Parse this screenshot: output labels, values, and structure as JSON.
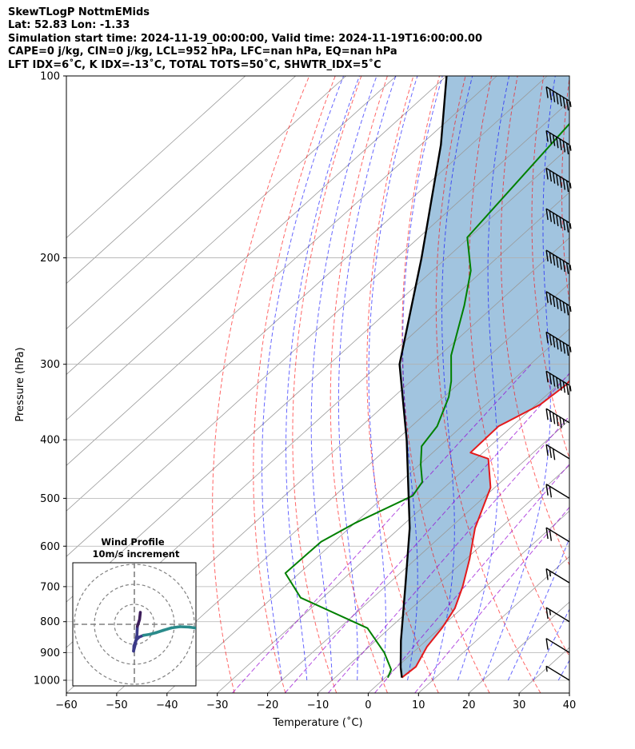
{
  "header": {
    "line1": "SkewTLogP NottmEMids",
    "line2": "Lat: 52.83   Lon: -1.33",
    "line3": "Simulation start time: 2024-11-19_00:00:00, Valid time: 2024-11-19T16:00:00.00",
    "line4": "CAPE=0 j/kg, CIN=0 j/kg, LCL=952 hPa, LFC=nan hPa, EQ=nan hPa",
    "line5": "LFT IDX=6˚C, K IDX=-13˚C, TOTAL TOTS=50˚C, SHWTR_IDX=5˚C"
  },
  "colors": {
    "temperature": "#e41a1c",
    "dewpoint": "#008000",
    "parcel": "#000000",
    "fill": "#a1c4df",
    "dry_adiabat": "#ff0000",
    "moist_adiabat": "#0000ff",
    "mixing_ratio": "#9400d3",
    "isotherm": "#999999"
  },
  "chart_data": {
    "type": "line",
    "title": "",
    "xlabel": "Temperature (˚C)",
    "ylabel": "Pressure (hPa)",
    "xlim": [
      -60,
      40
    ],
    "ylim": [
      1050,
      100
    ],
    "yscale": "log",
    "skew": true,
    "grid": true,
    "x_ticks": [
      "−60",
      "−50",
      "−40",
      "−30",
      "−20",
      "−10",
      "0",
      "10",
      "20",
      "30",
      "40"
    ],
    "y_ticks": [
      "100",
      "200",
      "300",
      "400",
      "500",
      "600",
      "700",
      "800",
      "900",
      "1000"
    ],
    "series": [
      {
        "role": "temperature",
        "points": [
          [
            3.3,
            990
          ],
          [
            3.7,
            950
          ],
          [
            1.5,
            880
          ],
          [
            0.4,
            820
          ],
          [
            -1.4,
            760
          ],
          [
            -4.6,
            700
          ],
          [
            -9.3,
            630
          ],
          [
            -15.0,
            560
          ],
          [
            -20.8,
            480
          ],
          [
            -27.6,
            430
          ],
          [
            -32.5,
            420
          ],
          [
            -32.7,
            380
          ],
          [
            -29.2,
            350
          ],
          [
            -28.4,
            325
          ],
          [
            -29.6,
            290
          ],
          [
            -31.3,
            250
          ],
          [
            -33.4,
            210
          ],
          [
            -36.0,
            190
          ],
          [
            -44.5,
            140
          ],
          [
            -53.4,
            100
          ]
        ]
      },
      {
        "role": "dewpoint",
        "points": [
          [
            0.5,
            990
          ],
          [
            -0.6,
            960
          ],
          [
            -5.7,
            900
          ],
          [
            -14.4,
            820
          ],
          [
            -34.4,
            730
          ],
          [
            -42.8,
            665
          ],
          [
            -42.6,
            590
          ],
          [
            -40.0,
            550
          ],
          [
            -34.5,
            495
          ],
          [
            -35.6,
            470
          ],
          [
            -39.7,
            440
          ],
          [
            -43.6,
            410
          ],
          [
            -44.9,
            380
          ],
          [
            -49.0,
            340
          ],
          [
            -52.0,
            320
          ],
          [
            -57.7,
            290
          ],
          [
            -66.0,
            240
          ],
          [
            -72.4,
            210
          ],
          [
            -80.4,
            185
          ],
          [
            -87.0,
            100
          ]
        ]
      },
      {
        "role": "parcel",
        "points": [
          [
            3.3,
            990
          ],
          [
            0.8,
            952
          ],
          [
            -5.0,
            860
          ],
          [
            -16.0,
            700
          ],
          [
            -28.0,
            560
          ],
          [
            -48.0,
            400
          ],
          [
            -66.0,
            300
          ],
          [
            -85.0,
            200
          ],
          [
            -106.0,
            130
          ],
          [
            -120.0,
            100
          ]
        ]
      }
    ],
    "wind_barbs": [
      {
        "pressure": 110,
        "speed_kt": 75
      },
      {
        "pressure": 130,
        "speed_kt": 75
      },
      {
        "pressure": 150,
        "speed_kt": 75
      },
      {
        "pressure": 175,
        "speed_kt": 75
      },
      {
        "pressure": 205,
        "speed_kt": 75
      },
      {
        "pressure": 240,
        "speed_kt": 75
      },
      {
        "pressure": 280,
        "speed_kt": 75
      },
      {
        "pressure": 325,
        "speed_kt": 75
      },
      {
        "pressure": 375,
        "speed_kt": 55
      },
      {
        "pressure": 430,
        "speed_kt": 30
      },
      {
        "pressure": 500,
        "speed_kt": 20
      },
      {
        "pressure": 590,
        "speed_kt": 20
      },
      {
        "pressure": 690,
        "speed_kt": 15
      },
      {
        "pressure": 800,
        "speed_kt": 15
      },
      {
        "pressure": 900,
        "speed_kt": 10
      },
      {
        "pressure": 1000,
        "speed_kt": 5
      }
    ],
    "inset": {
      "title": "Wind Profile",
      "subtitle": "10m/s increment",
      "trace_lower": [
        [
          1.5,
          -1.0
        ],
        [
          1.3,
          -5.2
        ],
        [
          0.6,
          -9.5
        ],
        [
          -0.4,
          -13.4
        ],
        [
          -0.2,
          -10.8
        ],
        [
          0.8,
          -8.0
        ],
        [
          2.4,
          -6.4
        ],
        [
          4.6,
          -5.5
        ],
        [
          7.8,
          -5.0
        ],
        [
          10.8,
          -4.2
        ],
        [
          14.5,
          -3.0
        ],
        [
          18.5,
          -1.8
        ],
        [
          22.8,
          -1.2
        ],
        [
          27.5,
          -1.4
        ],
        [
          31.0,
          -1.9
        ]
      ],
      "trace_upper": [
        [
          1.5,
          -1.0
        ],
        [
          2.6,
          2.4
        ],
        [
          3.0,
          6.0
        ]
      ]
    }
  }
}
